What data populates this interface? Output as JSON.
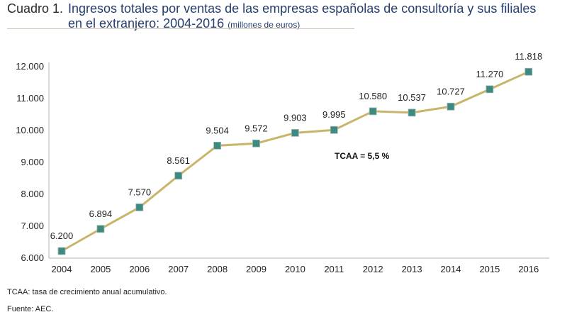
{
  "title": {
    "prefix": "Cuadro 1.",
    "line1": "Ingresos totales por ventas de las empresas españolas de consultoría y sus filiales",
    "line2": "en el extranjero: 2004-2016",
    "unit": "(millones de euros)"
  },
  "annotation": "TCAA = 5,5 %",
  "footnote": "TCAA: tasa de crecimiento anual acumulativo.",
  "source": "Fuente: AEC.",
  "colors": {
    "line": "#c9b46c",
    "marker": "#3d8a80",
    "title": "#263e6e"
  },
  "chart_data": {
    "type": "line",
    "categories": [
      "2004",
      "2005",
      "2006",
      "2007",
      "2008",
      "2009",
      "2010",
      "2011",
      "2012",
      "2013",
      "2014",
      "2015",
      "2016"
    ],
    "values": [
      6200,
      6894,
      7570,
      8561,
      9504,
      9572,
      9903,
      9995,
      10580,
      10537,
      10727,
      11270,
      11818
    ],
    "data_labels": [
      "6.200",
      "6.894",
      "7.570",
      "8.561",
      "9.504",
      "9.572",
      "9.903",
      "9.995",
      "10.580",
      "10.537",
      "10.727",
      "11.270",
      "11.818"
    ],
    "yticks": [
      "6.000",
      "7.000",
      "8.000",
      "9.000",
      "10.000",
      "11.000",
      "12.000"
    ],
    "ylim": [
      6000,
      12000
    ],
    "grid": false,
    "legend": "none"
  }
}
